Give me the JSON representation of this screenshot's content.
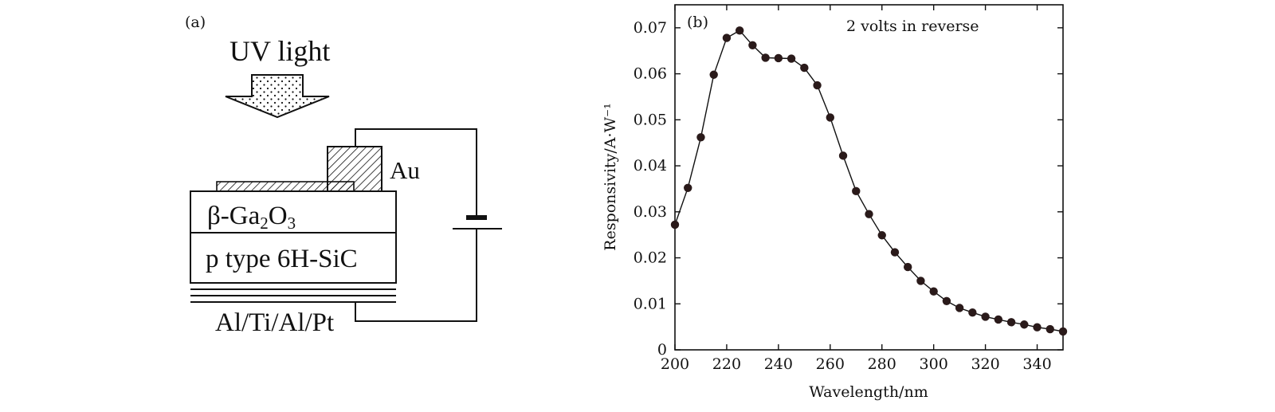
{
  "diagram": {
    "panel_label": "(a)",
    "light_label": "UV light",
    "electrode_label": "Au",
    "layer_top_prefix": "β-Ga",
    "layer_top_sub1": "2",
    "layer_top_mid": "O",
    "layer_top_sub2": "3",
    "layer_bottom": "p type 6H-SiC",
    "contact_label": "Al/Ti/Al/Pt"
  },
  "chart_data": {
    "type": "line",
    "panel_label": "(b)",
    "annotation": "2 volts in reverse",
    "xlabel": "Wavelength/nm",
    "ylabel": "Responsivity/A·W⁻¹",
    "xlim": [
      200,
      350
    ],
    "ylim": [
      0,
      0.075
    ],
    "xticks": [
      200,
      220,
      240,
      260,
      280,
      300,
      320,
      340
    ],
    "yticks": [
      0,
      0.01,
      0.02,
      0.03,
      0.04,
      0.05,
      0.06,
      0.07
    ],
    "ytick_labels": [
      "0",
      "0.01",
      "0.02",
      "0.03",
      "0.04",
      "0.05",
      "0.06",
      "0.07"
    ],
    "marker": "filled-circle",
    "series": [
      {
        "x": [
          200,
          205,
          210,
          215,
          220,
          225,
          230,
          235,
          240,
          245,
          250,
          255,
          260,
          265,
          270,
          275,
          280,
          285,
          290,
          295,
          300,
          305,
          310,
          315,
          320,
          325,
          330,
          335,
          340,
          345,
          350
        ],
        "y": [
          0.0272,
          0.0352,
          0.0462,
          0.0598,
          0.0678,
          0.0694,
          0.0662,
          0.0635,
          0.0634,
          0.0633,
          0.0613,
          0.0575,
          0.0505,
          0.0422,
          0.0345,
          0.0295,
          0.0249,
          0.0212,
          0.018,
          0.015,
          0.0127,
          0.0106,
          0.0091,
          0.0081,
          0.0072,
          0.0066,
          0.006,
          0.0055,
          0.0049,
          0.0045,
          0.004
        ]
      }
    ]
  }
}
